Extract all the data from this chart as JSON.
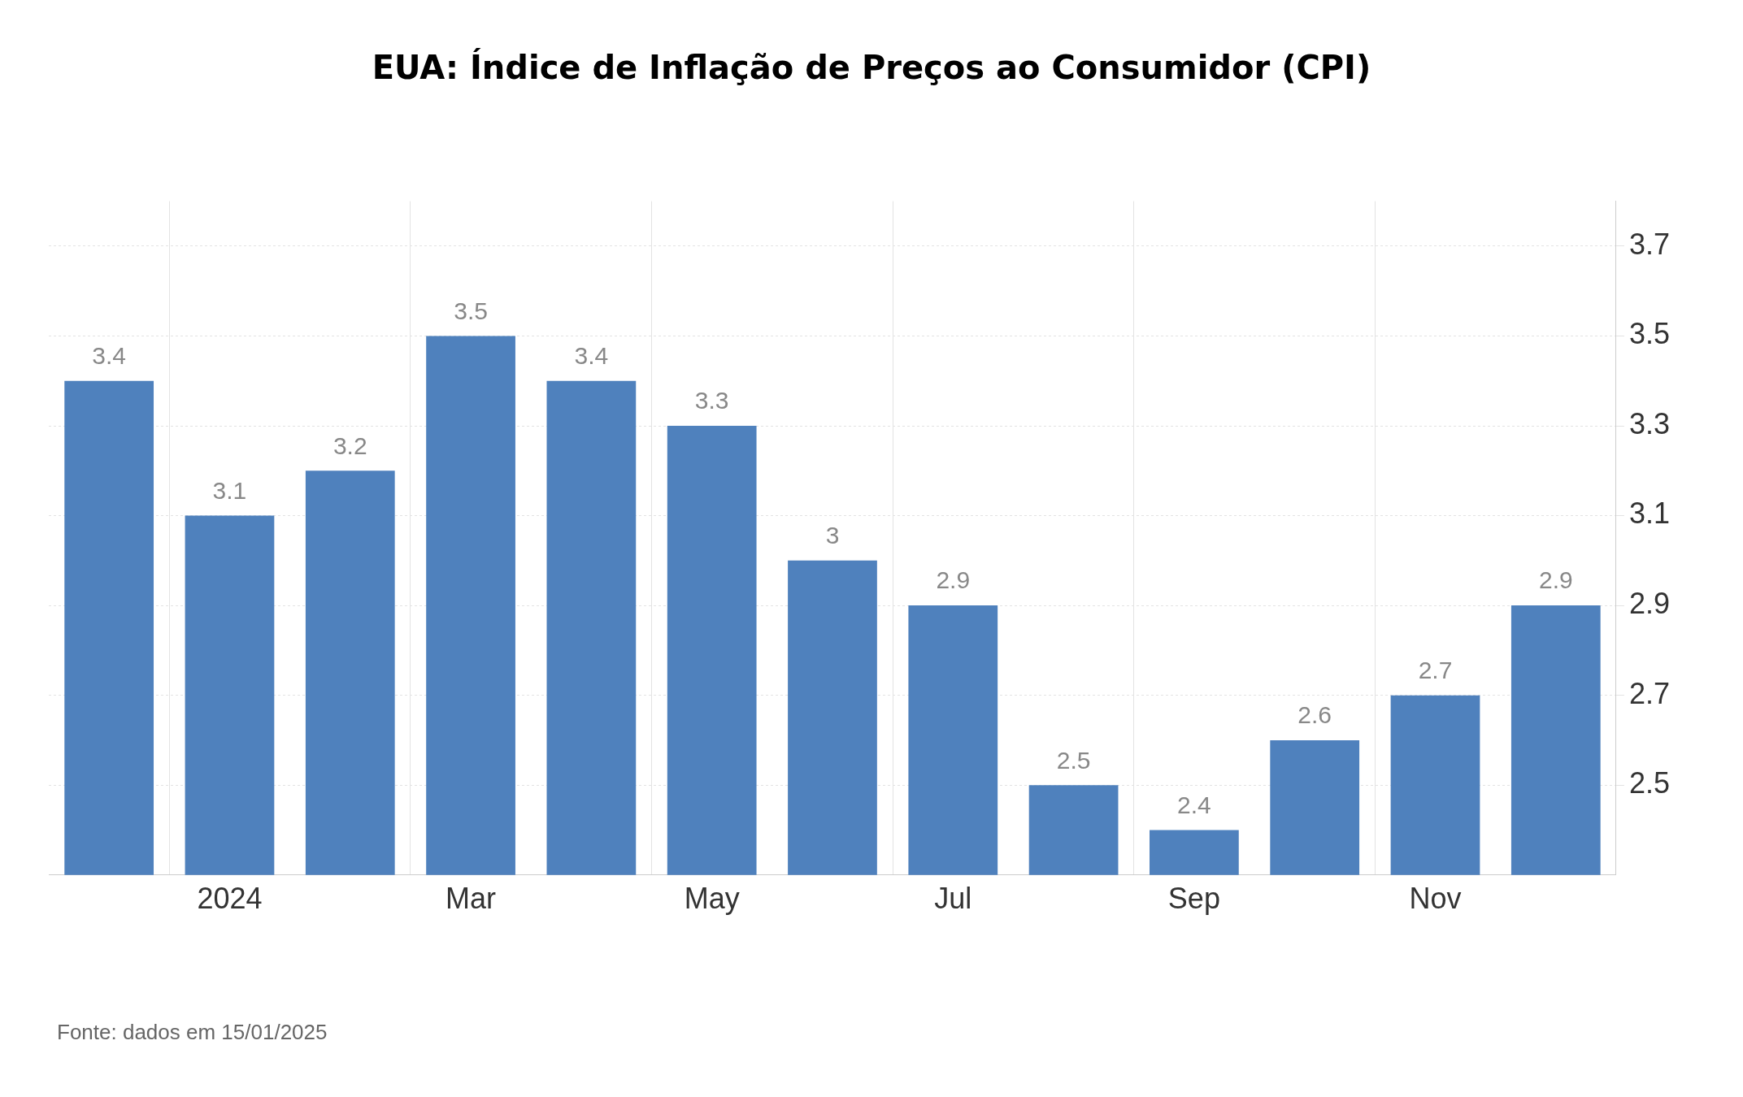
{
  "chart_data": {
    "type": "bar",
    "title": "EUA: Índice de Inflação de Preços ao Consumidor (CPI)",
    "categories": [
      null,
      "2024",
      null,
      "Mar",
      null,
      "May",
      null,
      "Jul",
      null,
      "Sep",
      null,
      "Nov",
      null
    ],
    "values": [
      3.4,
      3.1,
      3.2,
      3.5,
      3.4,
      3.3,
      3,
      2.9,
      2.5,
      2.4,
      2.6,
      2.7,
      2.9
    ],
    "color": "#4f81bd",
    "ylim": [
      2.3,
      3.8
    ],
    "yticks": [
      2.5,
      2.7,
      2.9,
      3.1,
      3.3,
      3.5,
      3.7
    ],
    "grid": true,
    "data_labels": true,
    "annotations": [
      "Fonte: dados em 15/01/2025"
    ]
  }
}
